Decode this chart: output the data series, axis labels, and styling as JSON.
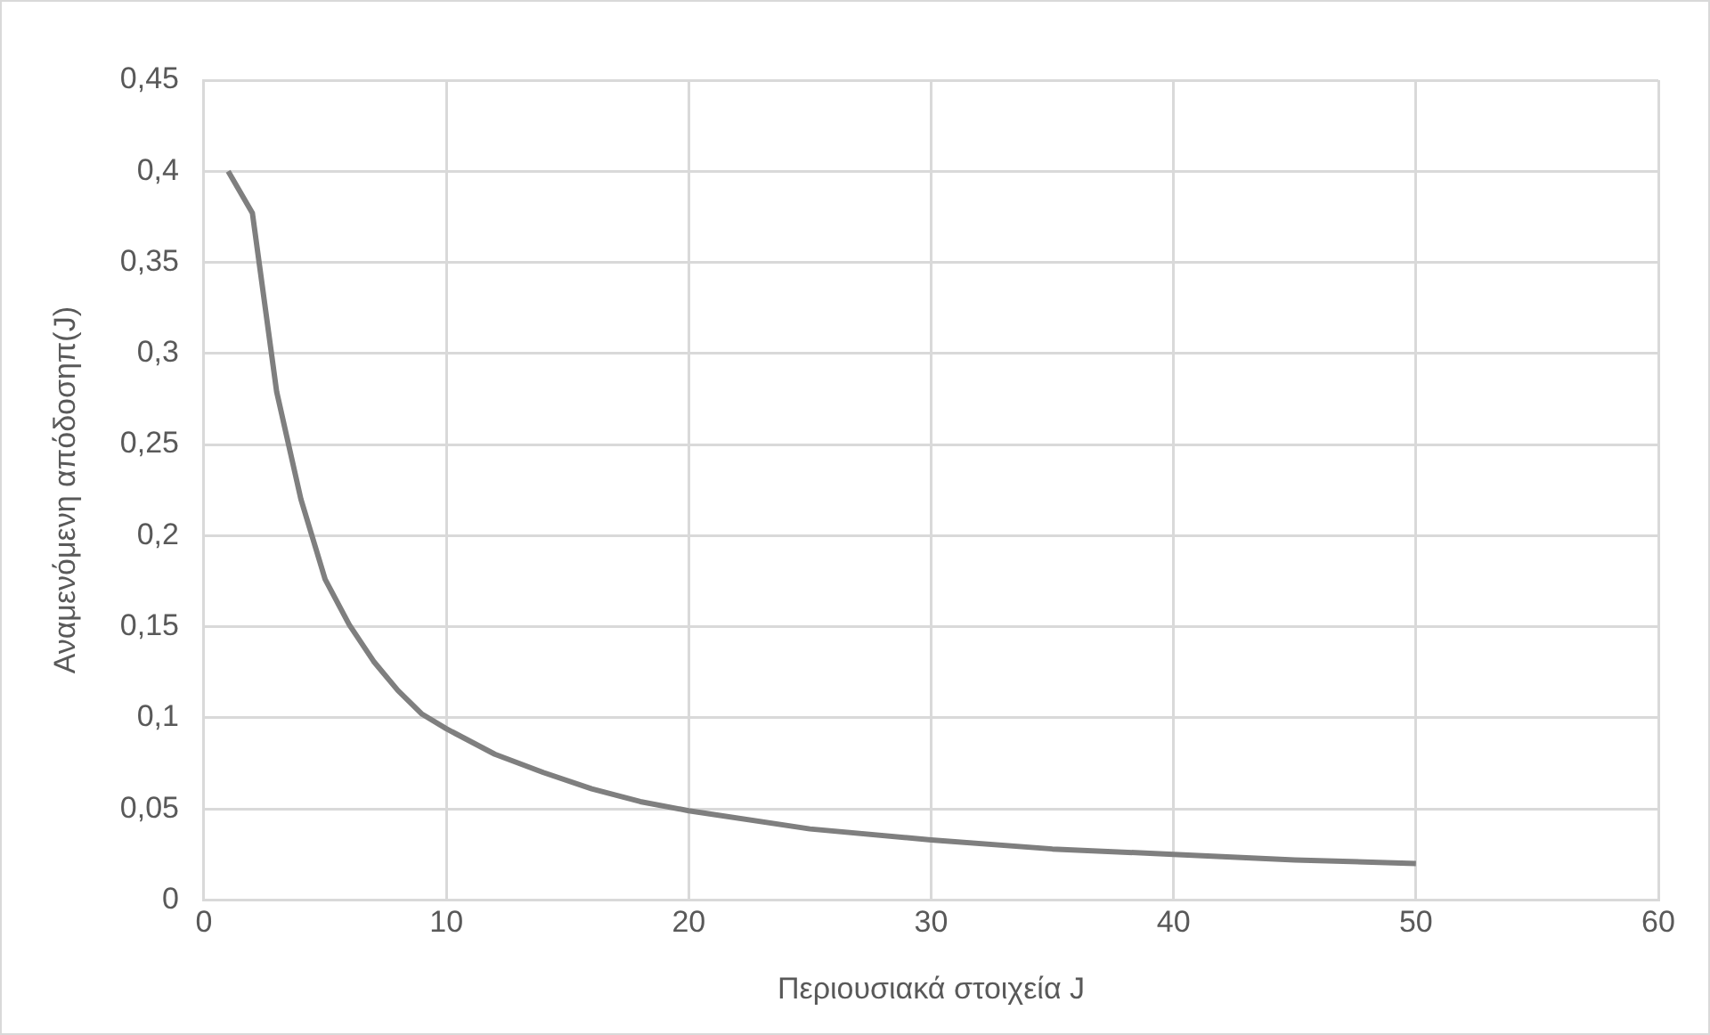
{
  "chart_data": {
    "type": "line",
    "xlabel": "Περιουσιακά στοιχεία J",
    "ylabel": "Αναμενόμενη απόδοσηπ(J)",
    "series": [
      {
        "color": "#7f7f7f",
        "x": [
          1,
          2,
          3,
          4,
          5,
          6,
          7,
          8,
          9,
          10,
          12,
          14,
          16,
          18,
          20,
          25,
          30,
          35,
          40,
          45,
          50
        ],
        "values": [
          0.4,
          0.377,
          0.279,
          0.22,
          0.176,
          0.151,
          0.131,
          0.115,
          0.102,
          0.094,
          0.08,
          0.07,
          0.061,
          0.054,
          0.049,
          0.039,
          0.033,
          0.028,
          0.025,
          0.022,
          0.02
        ]
      }
    ],
    "xlim": [
      0,
      60
    ],
    "xticks": [
      0,
      10,
      20,
      30,
      40,
      50,
      60
    ],
    "ylim": [
      0,
      0.45
    ],
    "yticks": [
      0,
      {
        "value": 0.05,
        "label": "0,05"
      },
      {
        "value": 0.1,
        "label": "0,1"
      },
      {
        "value": 0.15,
        "label": "0,15"
      },
      {
        "value": 0.2,
        "label": "0,2"
      },
      {
        "value": 0.25,
        "label": "0,25"
      },
      {
        "value": 0.3,
        "label": "0,3"
      },
      {
        "value": 0.35,
        "label": "0,35"
      },
      {
        "value": 0.4,
        "label": "0,4"
      },
      {
        "value": 0.45,
        "label": "0,45"
      }
    ],
    "grid": true,
    "legend": false,
    "marker": "none",
    "line_style": "solid"
  }
}
